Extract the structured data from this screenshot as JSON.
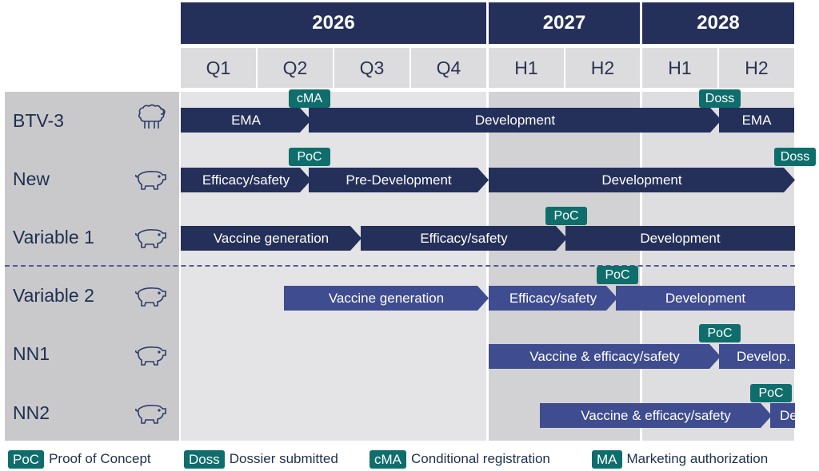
{
  "years": [
    {
      "label": "2026"
    },
    {
      "label": "2027"
    },
    {
      "label": "2028"
    }
  ],
  "periods": [
    {
      "label": "Q1"
    },
    {
      "label": "Q2"
    },
    {
      "label": "Q3"
    },
    {
      "label": "Q4"
    },
    {
      "label": "H1"
    },
    {
      "label": "H2"
    },
    {
      "label": "H1"
    },
    {
      "label": "H2"
    }
  ],
  "rows": [
    {
      "label": "BTV-3",
      "icon": "sheep-icon"
    },
    {
      "label": "New",
      "icon": "pig-icon"
    },
    {
      "label": "Variable 1",
      "icon": "pig-icon"
    },
    {
      "label": "Variable 2",
      "icon": "pig-icon"
    },
    {
      "label": "NN1",
      "icon": "pig-icon"
    },
    {
      "label": "NN2",
      "icon": "pig-icon"
    }
  ],
  "bars": {
    "btv3": [
      "EMA",
      "Development",
      "EMA"
    ],
    "new": [
      "Efficacy/safety",
      "Pre-Development",
      "Development"
    ],
    "var1": [
      "Vaccine generation",
      "Efficacy/safety",
      "Development"
    ],
    "var2": [
      "Vaccine generation",
      "Efficacy/safety",
      "Development"
    ],
    "nn1": [
      "Vaccine & efficacy/safety",
      "Develop."
    ],
    "nn2": [
      "Vaccine & efficacy/safety",
      "De"
    ]
  },
  "milestones": {
    "btv3": [
      "cMA",
      "Doss"
    ],
    "new": [
      "PoC",
      "Doss"
    ],
    "var1": [
      "PoC"
    ],
    "var2": [
      "PoC"
    ],
    "nn1": [
      "PoC"
    ],
    "nn2": [
      "PoC"
    ]
  },
  "legend": [
    {
      "tag": "PoC",
      "text": "Proof of Concept"
    },
    {
      "tag": "Doss",
      "text": "Dossier submitted"
    },
    {
      "tag": "cMA",
      "text": "Conditional registration"
    },
    {
      "tag": "MA",
      "text": "Marketing authorization"
    }
  ],
  "colors": {
    "header": "#25305a",
    "bar_dark": "#25305a",
    "bar_light": "#3f4c8f",
    "milestone": "#0f6e6c",
    "period_bg": "#dcdcdf"
  }
}
